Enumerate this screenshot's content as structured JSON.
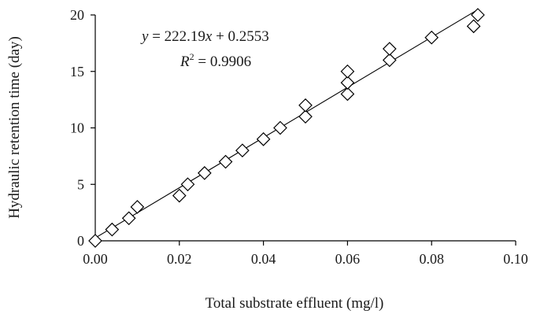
{
  "chart_data": {
    "type": "scatter",
    "xlabel": "Total substrate effluent (mg/l)",
    "ylabel": "Hydraulic retention time (day)",
    "xlim": [
      0,
      0.1
    ],
    "ylim": [
      0,
      20
    ],
    "x_ticks": [
      "0.00",
      "0.02",
      "0.04",
      "0.06",
      "0.08",
      "0.10"
    ],
    "y_ticks": [
      "0",
      "5",
      "10",
      "15",
      "20"
    ],
    "grid": false,
    "marker": "diamond",
    "points": [
      {
        "x": 0.0,
        "y": 0
      },
      {
        "x": 0.004,
        "y": 1
      },
      {
        "x": 0.008,
        "y": 2
      },
      {
        "x": 0.01,
        "y": 3
      },
      {
        "x": 0.02,
        "y": 4
      },
      {
        "x": 0.022,
        "y": 5
      },
      {
        "x": 0.026,
        "y": 6
      },
      {
        "x": 0.031,
        "y": 7
      },
      {
        "x": 0.035,
        "y": 8
      },
      {
        "x": 0.04,
        "y": 9
      },
      {
        "x": 0.044,
        "y": 10
      },
      {
        "x": 0.05,
        "y": 11
      },
      {
        "x": 0.05,
        "y": 12
      },
      {
        "x": 0.06,
        "y": 13
      },
      {
        "x": 0.06,
        "y": 14
      },
      {
        "x": 0.06,
        "y": 15
      },
      {
        "x": 0.07,
        "y": 16
      },
      {
        "x": 0.07,
        "y": 17
      },
      {
        "x": 0.08,
        "y": 18
      },
      {
        "x": 0.09,
        "y": 19
      },
      {
        "x": 0.091,
        "y": 20
      }
    ],
    "trendline": {
      "slope": 222.19,
      "intercept": 0.2553,
      "x_range": [
        0,
        0.091
      ]
    },
    "annotations": {
      "equation_y": "y",
      "equation_x": "x",
      "equation_rest_1": " = 222.19",
      "equation_rest_2": " + 0.2553",
      "r2_label": "R",
      "r2_sup": "2",
      "r2_value": " = 0.9906"
    }
  }
}
